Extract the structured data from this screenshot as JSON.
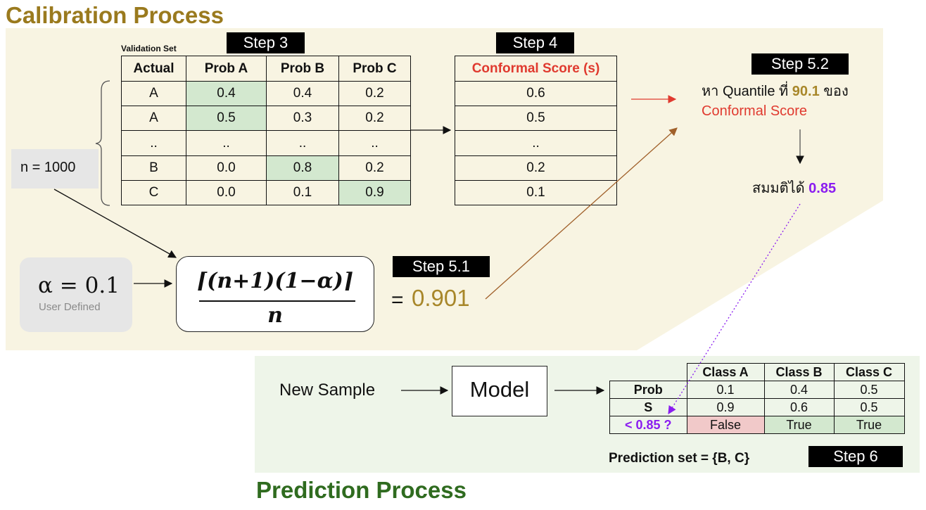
{
  "calibration": {
    "title": "Calibration Process",
    "title_color": "#9a7a1e",
    "panel_color": "#f8f4e2",
    "validation_label": "Validation Set",
    "step3": "Step 3",
    "step4": "Step 4",
    "step51": "Step 5.1",
    "step52": "Step 5.2",
    "table": {
      "headers": [
        "Actual",
        "Prob A",
        "Prob B",
        "Prob C"
      ],
      "rows": [
        [
          "A",
          "0.4",
          "0.4",
          "0.2"
        ],
        [
          "A",
          "0.5",
          "0.3",
          "0.2"
        ],
        [
          "..",
          "..",
          "..",
          ".."
        ],
        [
          "B",
          "0.0",
          "0.8",
          "0.2"
        ],
        [
          "C",
          "0.0",
          "0.1",
          "0.9"
        ]
      ]
    },
    "score_table": {
      "header": "Conformal Score (s)",
      "values": [
        "0.6",
        "0.5",
        "..",
        "0.2",
        "0.1"
      ]
    },
    "n_label": "n = 1000",
    "alpha": {
      "value": "α = 0.1",
      "caption": "User Defined"
    },
    "formula": {
      "numerator": "⌈(n+1)(1−α)⌉",
      "denominator": "n"
    },
    "result": {
      "eq": "=",
      "value": "0.901"
    },
    "quantile": {
      "line1_a": "หา Quantile ที่ ",
      "line1_num": "90.1",
      "line1_b": " ของ",
      "line2": "Conformal Score"
    },
    "assume": {
      "text": "สมมติได้ ",
      "value": "0.85"
    }
  },
  "prediction": {
    "title": "Prediction Process",
    "title_color": "#2f6b1f",
    "panel_color": "#eef5e9",
    "new_sample": "New Sample",
    "model": "Model",
    "step6": "Step 6",
    "table": {
      "headers": [
        "",
        "Class A",
        "Class B",
        "Class C"
      ],
      "rows": [
        [
          "Prob",
          "0.1",
          "0.4",
          "0.5"
        ],
        [
          "S",
          "0.9",
          "0.6",
          "0.5"
        ],
        [
          "< 0.85 ?",
          "False",
          "True",
          "True"
        ]
      ]
    },
    "set_label": "Prediction set = {B, C}"
  },
  "colors": {
    "gold": "#a8872a",
    "red": "#e03a2f",
    "purple": "#8a1cf0",
    "green_cell": "#d3e8cf",
    "pink_cell": "#f1c9c9",
    "brown_arrow": "#a0602a"
  }
}
